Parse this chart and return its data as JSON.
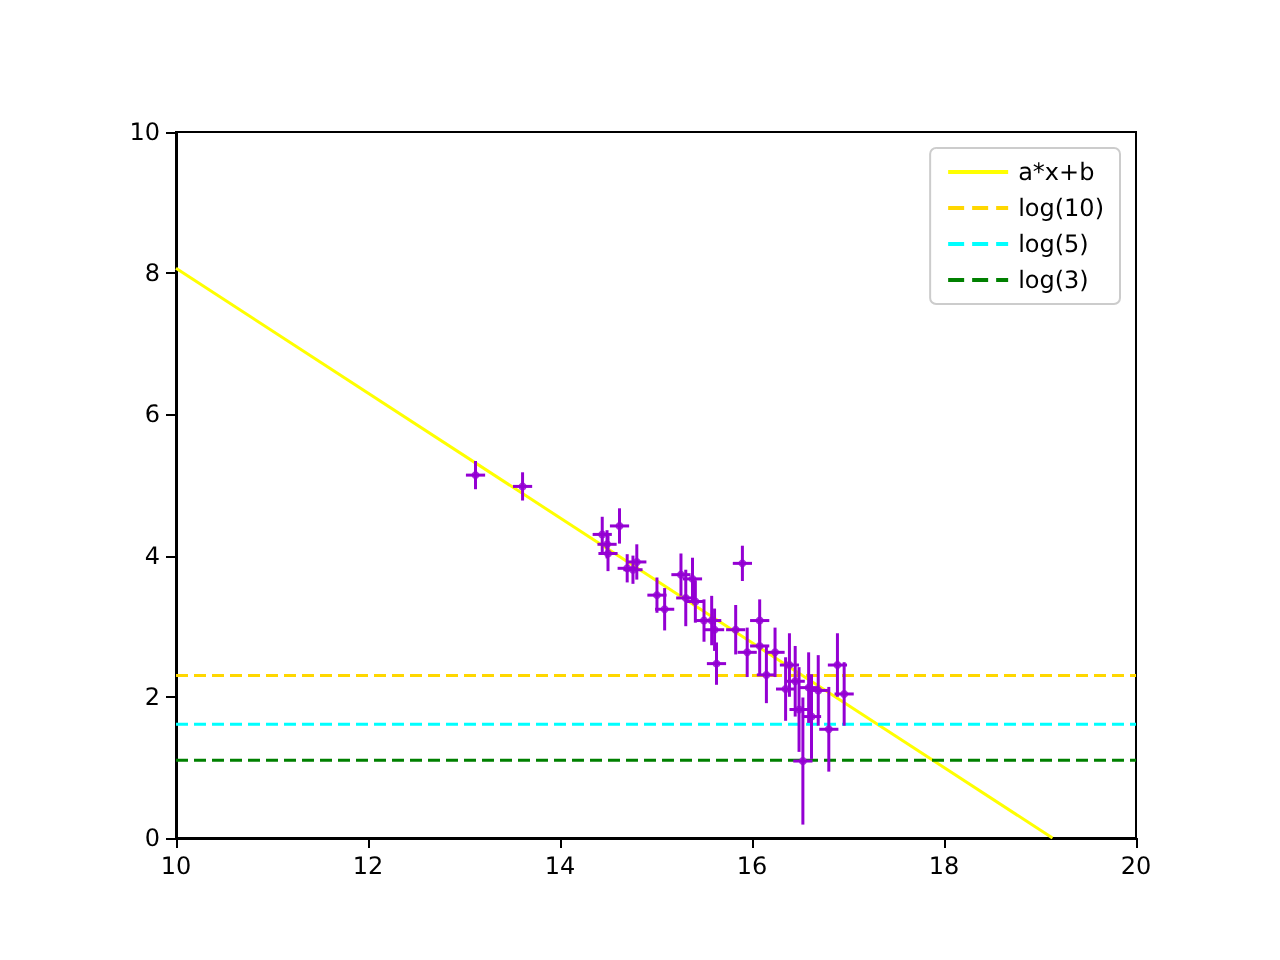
{
  "chart_data": {
    "type": "scatter",
    "xlim": [
      10,
      20
    ],
    "xticks": [
      10,
      12,
      14,
      16,
      18,
      20
    ],
    "ylim": [
      0,
      10
    ],
    "yticks": [
      0,
      2,
      4,
      6,
      8,
      10
    ],
    "grid": false,
    "legend": "top right",
    "series": [
      {
        "color": "#9400d3",
        "marker": "circle",
        "x": [
          13.12,
          13.61,
          14.44,
          14.49,
          14.5,
          14.62,
          14.7,
          14.76,
          14.8,
          15.01,
          15.09,
          15.26,
          15.31,
          15.38,
          15.41,
          15.5,
          15.58,
          15.61,
          15.63,
          15.83,
          15.9,
          15.95,
          16.08,
          16.08,
          16.15,
          16.24,
          16.35,
          16.39,
          16.45,
          16.49,
          16.53,
          16.59,
          16.62,
          16.69,
          16.8,
          16.89,
          16.96
        ],
        "values": [
          5.14,
          4.98,
          4.3,
          4.16,
          4.03,
          4.42,
          3.82,
          3.8,
          3.91,
          3.44,
          3.24,
          3.73,
          3.4,
          3.67,
          3.35,
          3.08,
          3.08,
          2.95,
          2.47,
          2.95,
          3.89,
          2.63,
          3.08,
          2.72,
          2.31,
          2.63,
          2.11,
          2.45,
          2.22,
          1.82,
          1.09,
          2.13,
          1.72,
          2.09,
          1.54,
          2.45,
          2.04
        ],
        "errors": [
          0.2,
          0.2,
          0.25,
          0.2,
          0.25,
          0.25,
          0.2,
          0.2,
          0.25,
          0.25,
          0.3,
          0.3,
          0.4,
          0.3,
          0.3,
          0.3,
          0.35,
          0.3,
          0.3,
          0.35,
          0.25,
          0.35,
          0.3,
          0.4,
          0.4,
          0.35,
          0.45,
          0.45,
          0.5,
          0.6,
          0.9,
          0.5,
          0.6,
          0.5,
          0.6,
          0.45,
          0.45
        ],
        "xerrors": [
          0.1,
          0.1,
          0.1,
          0.1,
          0.1,
          0.1,
          0.1,
          0.1,
          0.1,
          0.1,
          0.1,
          0.1,
          0.1,
          0.1,
          0.1,
          0.1,
          0.1,
          0.1,
          0.1,
          0.1,
          0.1,
          0.1,
          0.1,
          0.1,
          0.1,
          0.1,
          0.1,
          0.1,
          0.1,
          0.1,
          0.1,
          0.1,
          0.1,
          0.1,
          0.1,
          0.1,
          0.1
        ]
      },
      {
        "type": "line",
        "name": "a*x+b",
        "color": "#ffff00",
        "line_style": "solid",
        "x": [
          10,
          19.13
        ],
        "values": [
          8.07,
          0
        ]
      },
      {
        "type": "line",
        "name": "log(10)",
        "color": "#ffd700",
        "line_style": "dashed",
        "x": [
          10,
          20
        ],
        "values": [
          2.3,
          2.3
        ]
      },
      {
        "type": "line",
        "name": "log(5)",
        "color": "#00ffff",
        "line_style": "dashed",
        "x": [
          10,
          20
        ],
        "values": [
          1.61,
          1.61
        ]
      },
      {
        "type": "line",
        "name": "log(3)",
        "color": "#008000",
        "line_style": "dashed",
        "x": [
          10,
          20
        ],
        "values": [
          1.1,
          1.1
        ]
      }
    ]
  }
}
